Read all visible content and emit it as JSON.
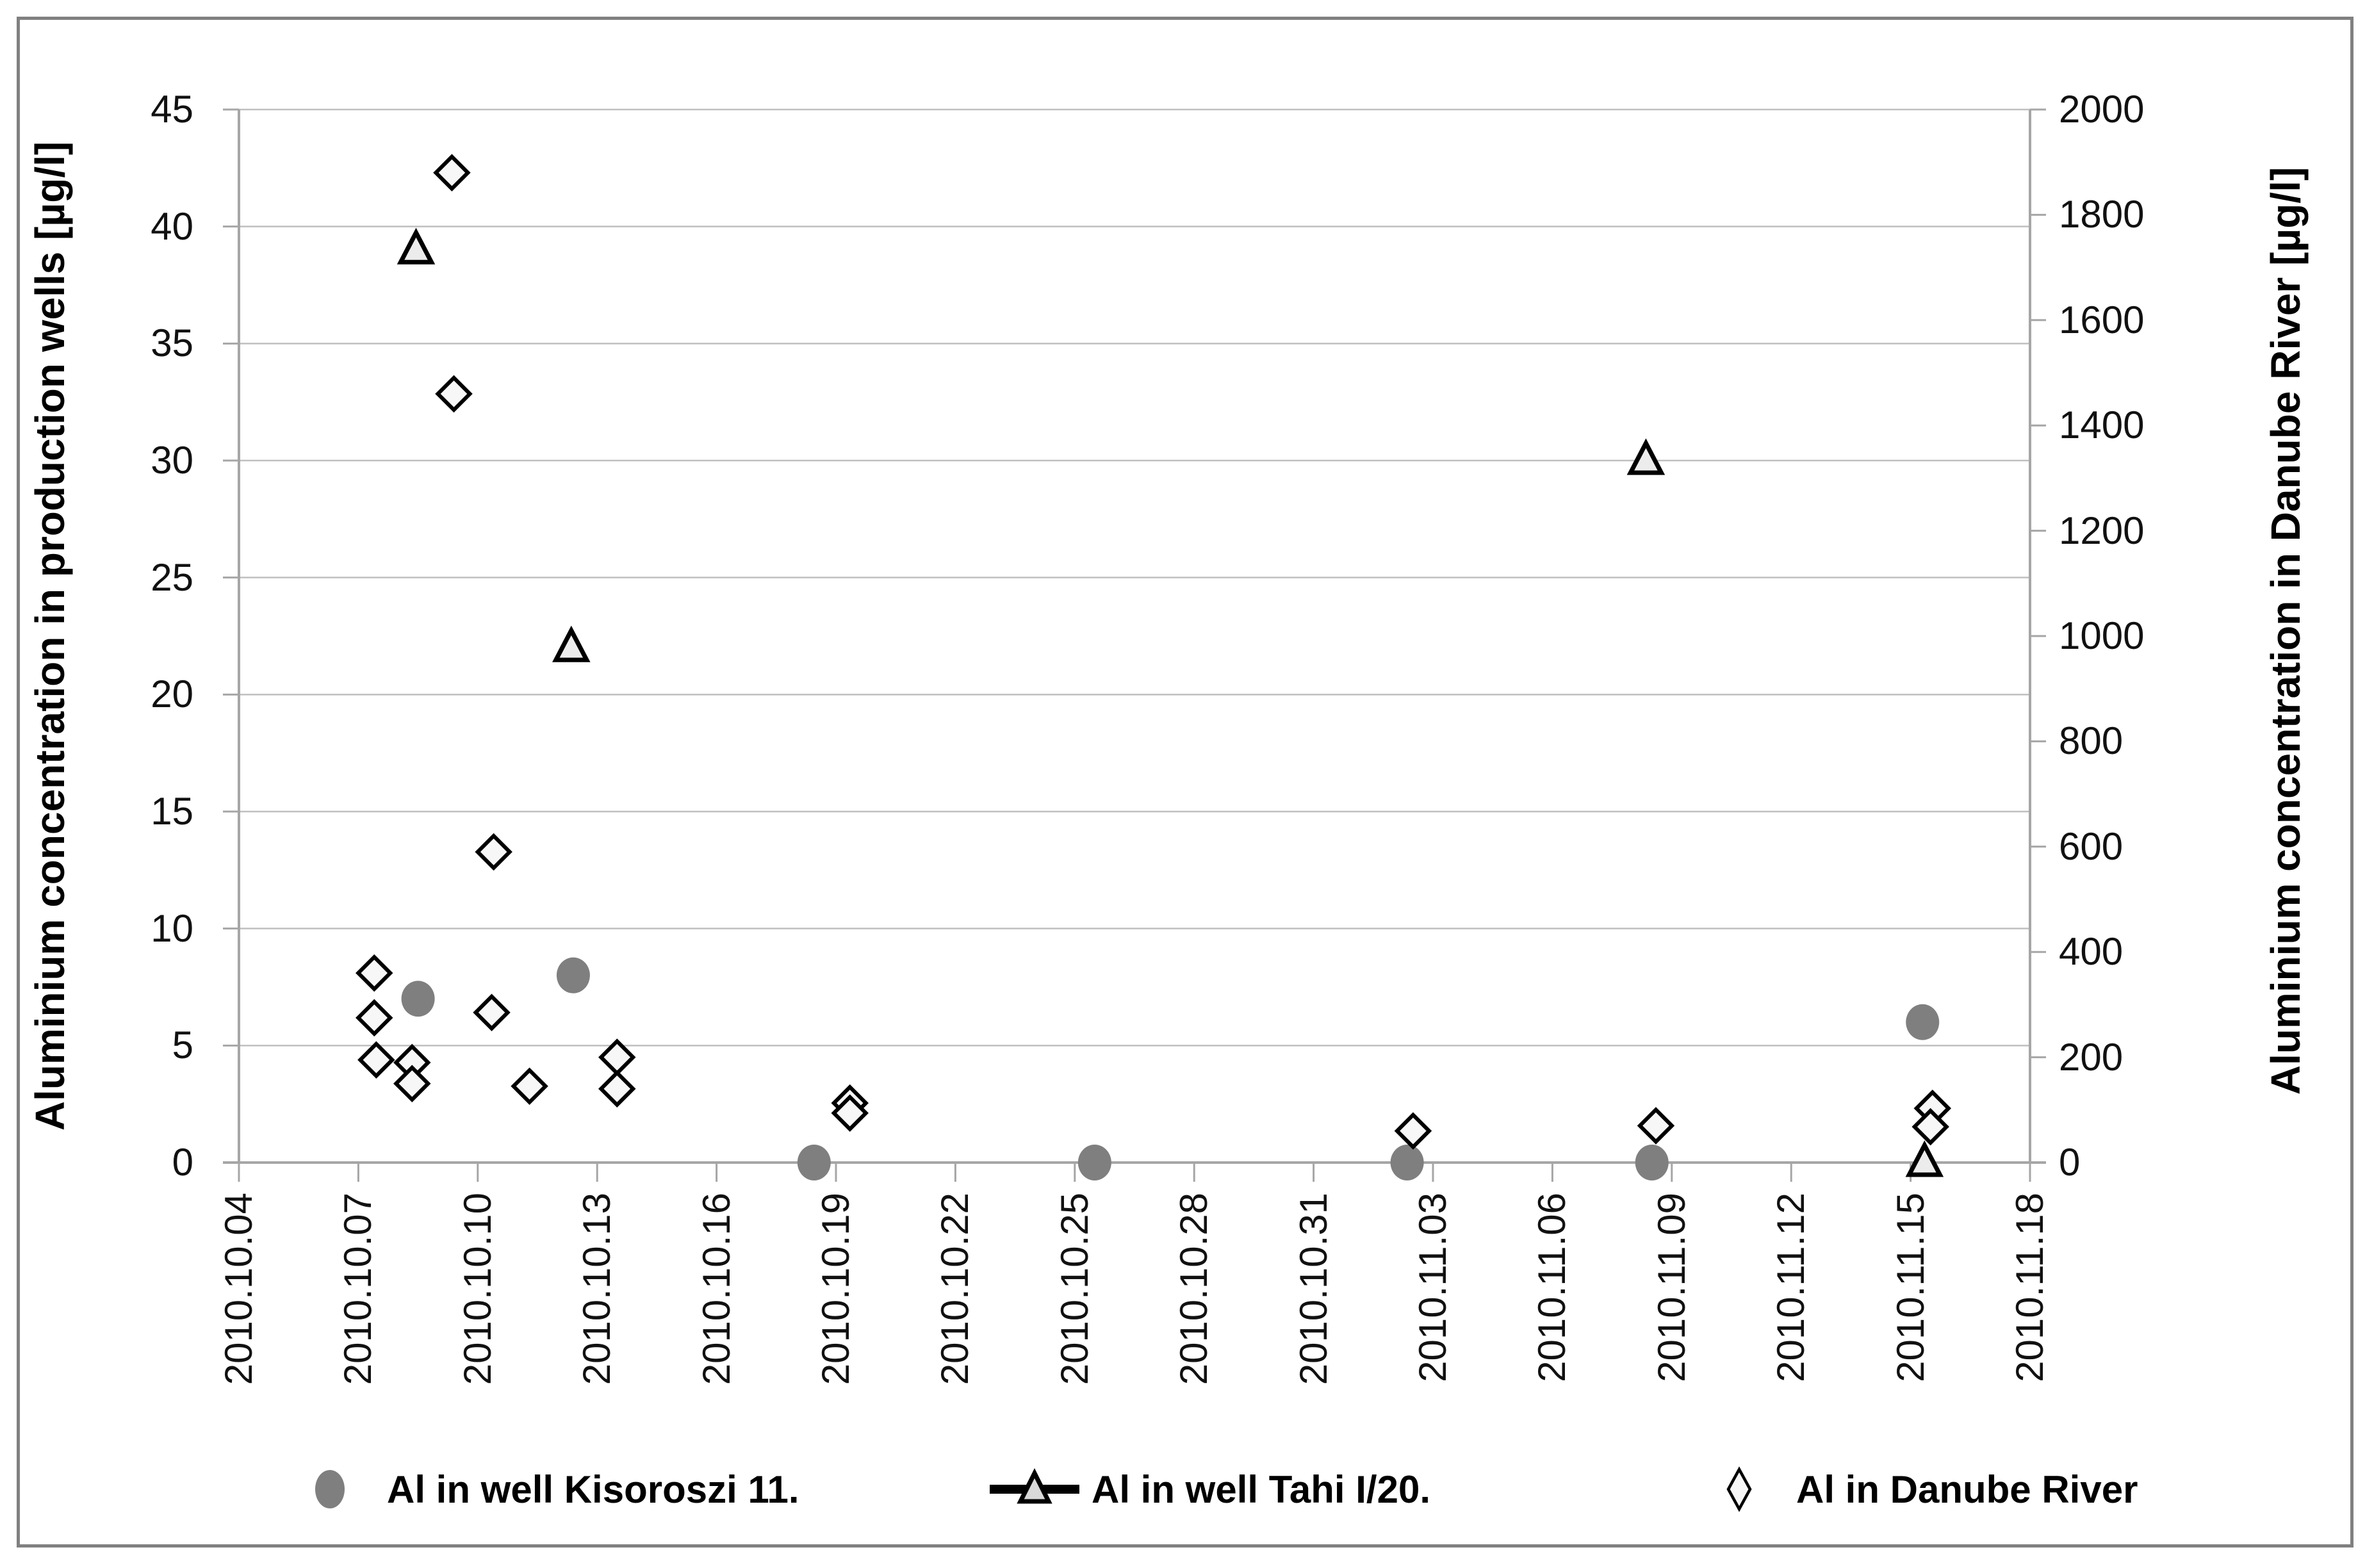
{
  "chart_data": {
    "type": "scatter",
    "title": "",
    "xlabel": "",
    "ylabel_left": "Aluminium concentration in production wells [µg/l]",
    "ylabel_right": "Aluminium concentration in Danube River [µg/l]",
    "grid": "horizontal",
    "legend_position": "bottom",
    "x_axis": {
      "unit": "date",
      "range_days": [
        0,
        45
      ],
      "tick_interval_days": 3,
      "tick_labels": [
        "2010.10.04",
        "2010.10.07",
        "2010.10.10",
        "2010.10.13",
        "2010.10.16",
        "2010.10.19",
        "2010.10.22",
        "2010.10.25",
        "2010.10.28",
        "2010.10.31",
        "2010.11.03",
        "2010.11.06",
        "2010.11.09",
        "2010.11.12",
        "2010.11.15",
        "2010.11.18"
      ]
    },
    "y_axis_left": {
      "min": 0,
      "max": 45,
      "step": 5,
      "tick_labels": [
        45,
        40,
        35,
        30,
        25,
        20,
        15,
        10,
        5,
        0
      ]
    },
    "y_axis_right": {
      "min": 0,
      "max": 2000,
      "step": 200,
      "tick_labels": [
        2000,
        1800,
        1600,
        1400,
        1200,
        1000,
        800,
        600,
        400,
        200,
        0
      ]
    },
    "series": [
      {
        "name": "Al in well Kisoroszi 11.",
        "marker": "filled-circle",
        "marker_color": "#7f7f7f",
        "axis": "left",
        "points": [
          {
            "date": "2010.10.08",
            "day": 4.5,
            "value": 7.0
          },
          {
            "date": "2010.10.12",
            "day": 8.4,
            "value": 8.0
          },
          {
            "date": "2010.10.18",
            "day": 14.45,
            "value": 0
          },
          {
            "date": "2010.10.25",
            "day": 21.5,
            "value": 0
          },
          {
            "date": "2010.11.02",
            "day": 29.35,
            "value": 0
          },
          {
            "date": "2010.11.08",
            "day": 35.5,
            "value": 0
          },
          {
            "date": "2010.11.15",
            "day": 42.3,
            "value": 6.0
          }
        ]
      },
      {
        "name": "Al in well Tahi I/20.",
        "marker": "open-triangle-line",
        "marker_color": "#ececec",
        "axis": "left",
        "points": [
          {
            "date": "2010.10.08",
            "day": 4.45,
            "value": 39
          },
          {
            "date": "2010.10.12",
            "day": 8.35,
            "value": 22
          },
          {
            "date": "2010.11.08",
            "day": 35.35,
            "value": 30
          },
          {
            "date": "2010.11.15",
            "day": 42.35,
            "value": 0
          }
        ]
      },
      {
        "name": "Al in Danube River",
        "marker": "open-diamond",
        "marker_color": "#f7f7f7",
        "axis": "right",
        "points": [
          {
            "date": "2010.10.07",
            "day": 3.4,
            "value": 360
          },
          {
            "date": "2010.10.07",
            "day": 3.4,
            "value": 275
          },
          {
            "date": "2010.10.07",
            "day": 3.45,
            "value": 195
          },
          {
            "date": "2010.10.08",
            "day": 4.35,
            "value": 190
          },
          {
            "date": "2010.10.08",
            "day": 4.35,
            "value": 150
          },
          {
            "date": "2010.10.09",
            "day": 5.35,
            "value": 1880
          },
          {
            "date": "2010.10.09",
            "day": 5.4,
            "value": 1460
          },
          {
            "date": "2010.10.10",
            "day": 6.4,
            "value": 590
          },
          {
            "date": "2010.10.10",
            "day": 6.35,
            "value": 285
          },
          {
            "date": "2010.10.11",
            "day": 7.3,
            "value": 145
          },
          {
            "date": "2010.10.13",
            "day": 9.5,
            "value": 200
          },
          {
            "date": "2010.10.13",
            "day": 9.5,
            "value": 140
          },
          {
            "date": "2010.10.19",
            "day": 15.35,
            "value": 113
          },
          {
            "date": "2010.10.19",
            "day": 15.35,
            "value": 94
          },
          {
            "date": "2010.11.02",
            "day": 29.5,
            "value": 60
          },
          {
            "date": "2010.11.08",
            "day": 35.6,
            "value": 70
          },
          {
            "date": "2010.11.15",
            "day": 42.55,
            "value": 103
          },
          {
            "date": "2010.11.15",
            "day": 42.5,
            "value": 68
          }
        ]
      }
    ],
    "colors": {
      "gridline": "#bfbfbf",
      "axis_line": "#a6a6a6",
      "frame_border": "#808080",
      "marker_stroke": "#000000",
      "filled_marker": "#7f7f7f"
    }
  }
}
